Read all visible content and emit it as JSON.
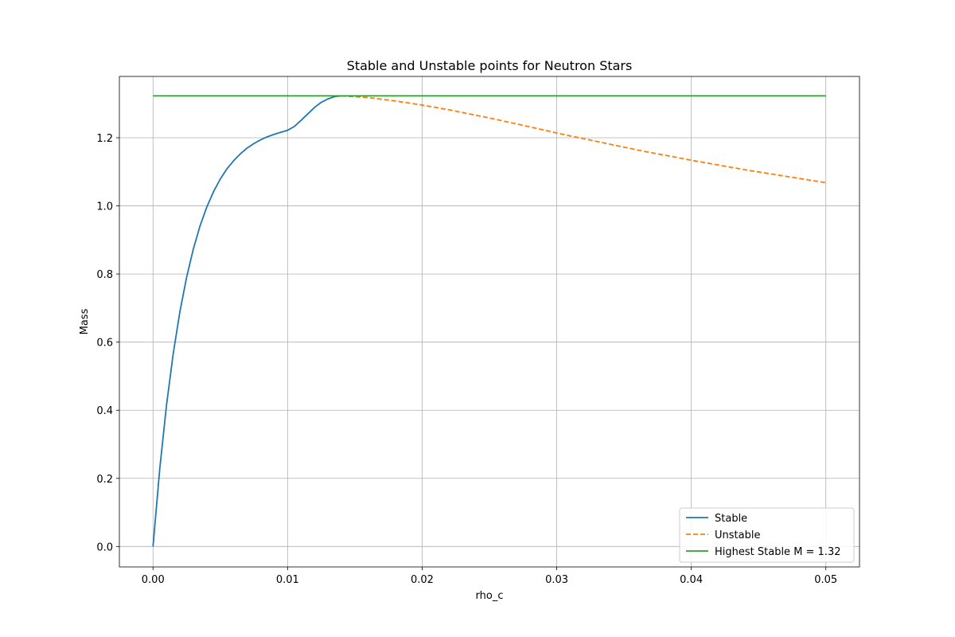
{
  "chart_data": {
    "type": "line",
    "title": "Stable and Unstable points for Neutron Stars",
    "xlabel": "rho_c",
    "ylabel": "Mass",
    "xlim": [
      -0.0025,
      0.0525
    ],
    "ylim": [
      -0.06,
      1.38
    ],
    "grid": true,
    "legend_position": "lower-right",
    "xticks": [
      0.0,
      0.01,
      0.02,
      0.03,
      0.04,
      0.05
    ],
    "xtick_labels": [
      "0.00",
      "0.01",
      "0.02",
      "0.03",
      "0.04",
      "0.05"
    ],
    "yticks": [
      0.0,
      0.2,
      0.4,
      0.6,
      0.8,
      1.0,
      1.2
    ],
    "ytick_labels": [
      "0.0",
      "0.2",
      "0.4",
      "0.6",
      "0.8",
      "1.0",
      "1.2"
    ],
    "series": [
      {
        "name": "Stable",
        "color": "#1f77b4",
        "style": "solid",
        "x": [
          0.0,
          0.0005,
          0.001,
          0.0015,
          0.002,
          0.0025,
          0.003,
          0.0035,
          0.004,
          0.0045,
          0.005,
          0.0055,
          0.006,
          0.0065,
          0.007,
          0.0075,
          0.008,
          0.0085,
          0.009,
          0.0095,
          0.01,
          0.0105,
          0.011,
          0.0115,
          0.012,
          0.0125,
          0.013,
          0.0135,
          0.014
        ],
        "y": [
          0.0,
          0.228,
          0.414,
          0.566,
          0.69,
          0.791,
          0.874,
          0.942,
          0.997,
          1.042,
          1.079,
          1.109,
          1.133,
          1.153,
          1.17,
          1.183,
          1.194,
          1.203,
          1.21,
          1.216,
          1.222,
          1.233,
          1.251,
          1.27,
          1.289,
          1.304,
          1.314,
          1.321,
          1.323
        ]
      },
      {
        "name": "Unstable",
        "color": "#ff7f0e",
        "style": "dashed",
        "x": [
          0.014,
          0.016,
          0.018,
          0.02,
          0.022,
          0.025,
          0.028,
          0.03,
          0.033,
          0.036,
          0.04,
          0.044,
          0.047,
          0.05
        ],
        "y": [
          1.323,
          1.318,
          1.308,
          1.296,
          1.282,
          1.258,
          1.232,
          1.214,
          1.189,
          1.164,
          1.134,
          1.106,
          1.087,
          1.068
        ]
      },
      {
        "name": "Highest Stable M = 1.32",
        "color": "#2ca02c",
        "style": "solid",
        "x": [
          0.0,
          0.05
        ],
        "y": [
          1.323,
          1.323
        ]
      }
    ]
  }
}
